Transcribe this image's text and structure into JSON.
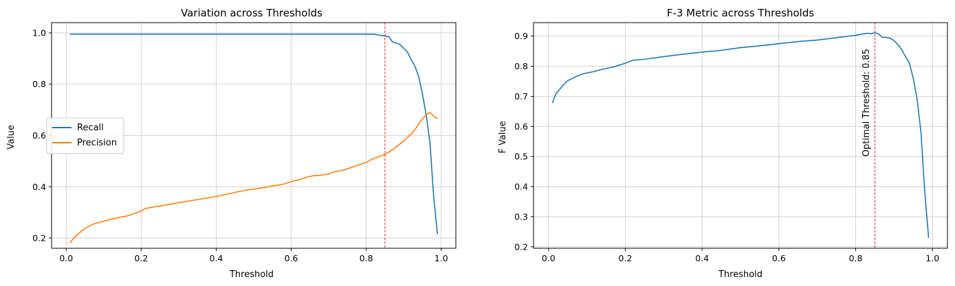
{
  "chart_data": [
    {
      "type": "line",
      "title": "Variation across Thresholds",
      "xlabel": "Threshold",
      "ylabel": "Value",
      "xlim": [
        -0.039,
        1.039
      ],
      "ylim": [
        0.16,
        1.04
      ],
      "xticks": [
        0.0,
        0.2,
        0.4,
        0.6,
        0.8,
        1.0
      ],
      "xtick_labels": [
        "0.0",
        "0.2",
        "0.4",
        "0.6",
        "0.8",
        "1.0"
      ],
      "yticks": [
        0.2,
        0.4,
        0.6,
        0.8,
        1.0
      ],
      "ytick_labels": [
        "0.2",
        "0.4",
        "0.6",
        "0.8",
        "1.0"
      ],
      "grid": true,
      "legend_position": "center-left",
      "vline": {
        "x": 0.85,
        "color": "#d62728",
        "style": "dashed"
      },
      "series": [
        {
          "name": "Recall",
          "color": "#1f77b4",
          "points": [
            [
              0.01,
              0.995
            ],
            [
              0.1,
              0.995
            ],
            [
              0.2,
              0.995
            ],
            [
              0.3,
              0.995
            ],
            [
              0.4,
              0.995
            ],
            [
              0.5,
              0.995
            ],
            [
              0.6,
              0.995
            ],
            [
              0.7,
              0.995
            ],
            [
              0.8,
              0.995
            ],
            [
              0.82,
              0.995
            ],
            [
              0.84,
              0.99
            ],
            [
              0.86,
              0.985
            ],
            [
              0.87,
              0.965
            ],
            [
              0.88,
              0.96
            ],
            [
              0.89,
              0.955
            ],
            [
              0.9,
              0.94
            ],
            [
              0.91,
              0.925
            ],
            [
              0.92,
              0.895
            ],
            [
              0.93,
              0.87
            ],
            [
              0.94,
              0.83
            ],
            [
              0.95,
              0.76
            ],
            [
              0.96,
              0.68
            ],
            [
              0.97,
              0.57
            ],
            [
              0.98,
              0.36
            ],
            [
              0.99,
              0.215
            ]
          ]
        },
        {
          "name": "Precision",
          "color": "#ff7f0e",
          "points": [
            [
              0.01,
              0.18
            ],
            [
              0.02,
              0.2
            ],
            [
              0.03,
              0.213
            ],
            [
              0.04,
              0.226
            ],
            [
              0.05,
              0.237
            ],
            [
              0.06,
              0.245
            ],
            [
              0.07,
              0.253
            ],
            [
              0.08,
              0.258
            ],
            [
              0.1,
              0.265
            ],
            [
              0.12,
              0.273
            ],
            [
              0.14,
              0.28
            ],
            [
              0.16,
              0.285
            ],
            [
              0.18,
              0.295
            ],
            [
              0.2,
              0.305
            ],
            [
              0.21,
              0.315
            ],
            [
              0.23,
              0.32
            ],
            [
              0.25,
              0.325
            ],
            [
              0.27,
              0.33
            ],
            [
              0.3,
              0.338
            ],
            [
              0.33,
              0.345
            ],
            [
              0.35,
              0.35
            ],
            [
              0.38,
              0.357
            ],
            [
              0.4,
              0.362
            ],
            [
              0.42,
              0.368
            ],
            [
              0.45,
              0.378
            ],
            [
              0.48,
              0.387
            ],
            [
              0.5,
              0.39
            ],
            [
              0.52,
              0.395
            ],
            [
              0.55,
              0.403
            ],
            [
              0.58,
              0.41
            ],
            [
              0.6,
              0.42
            ],
            [
              0.62,
              0.427
            ],
            [
              0.64,
              0.437
            ],
            [
              0.66,
              0.443
            ],
            [
              0.68,
              0.445
            ],
            [
              0.7,
              0.45
            ],
            [
              0.72,
              0.46
            ],
            [
              0.74,
              0.465
            ],
            [
              0.76,
              0.475
            ],
            [
              0.78,
              0.485
            ],
            [
              0.8,
              0.495
            ],
            [
              0.82,
              0.51
            ],
            [
              0.84,
              0.52
            ],
            [
              0.85,
              0.527
            ],
            [
              0.86,
              0.535
            ],
            [
              0.87,
              0.545
            ],
            [
              0.88,
              0.555
            ],
            [
              0.89,
              0.567
            ],
            [
              0.9,
              0.578
            ],
            [
              0.91,
              0.593
            ],
            [
              0.92,
              0.605
            ],
            [
              0.93,
              0.622
            ],
            [
              0.94,
              0.645
            ],
            [
              0.95,
              0.665
            ],
            [
              0.96,
              0.68
            ],
            [
              0.97,
              0.69
            ],
            [
              0.98,
              0.675
            ],
            [
              0.99,
              0.665
            ]
          ]
        }
      ]
    },
    {
      "type": "line",
      "title": "F-3 Metric across Thresholds",
      "xlabel": "Threshold",
      "ylabel": "F Value",
      "xlim": [
        -0.039,
        1.039
      ],
      "ylim": [
        0.195,
        0.945
      ],
      "xticks": [
        0.0,
        0.2,
        0.4,
        0.6,
        0.8,
        1.0
      ],
      "xtick_labels": [
        "0.0",
        "0.2",
        "0.4",
        "0.6",
        "0.8",
        "1.0"
      ],
      "yticks": [
        0.2,
        0.3,
        0.4,
        0.5,
        0.6,
        0.7,
        0.8,
        0.9
      ],
      "ytick_labels": [
        "0.2",
        "0.3",
        "0.4",
        "0.5",
        "0.6",
        "0.7",
        "0.8",
        "0.9"
      ],
      "grid": true,
      "vline": {
        "x": 0.85,
        "color": "#d62728",
        "style": "dashed"
      },
      "annotation": {
        "text": "Optimal Threshold: 0.85",
        "x": 0.835,
        "y": 0.5,
        "rotation": 90
      },
      "series": [
        {
          "name": "",
          "color": "#1f77b4",
          "points": [
            [
              0.01,
              0.678
            ],
            [
              0.02,
              0.71
            ],
            [
              0.03,
              0.725
            ],
            [
              0.04,
              0.74
            ],
            [
              0.05,
              0.752
            ],
            [
              0.07,
              0.765
            ],
            [
              0.09,
              0.775
            ],
            [
              0.12,
              0.783
            ],
            [
              0.14,
              0.79
            ],
            [
              0.17,
              0.798
            ],
            [
              0.2,
              0.81
            ],
            [
              0.22,
              0.82
            ],
            [
              0.25,
              0.823
            ],
            [
              0.3,
              0.832
            ],
            [
              0.35,
              0.84
            ],
            [
              0.4,
              0.847
            ],
            [
              0.45,
              0.853
            ],
            [
              0.5,
              0.862
            ],
            [
              0.55,
              0.868
            ],
            [
              0.6,
              0.875
            ],
            [
              0.65,
              0.882
            ],
            [
              0.7,
              0.887
            ],
            [
              0.75,
              0.895
            ],
            [
              0.8,
              0.903
            ],
            [
              0.83,
              0.91
            ],
            [
              0.84,
              0.908
            ],
            [
              0.85,
              0.912
            ],
            [
              0.86,
              0.907
            ],
            [
              0.87,
              0.896
            ],
            [
              0.88,
              0.896
            ],
            [
              0.89,
              0.893
            ],
            [
              0.9,
              0.885
            ],
            [
              0.91,
              0.872
            ],
            [
              0.92,
              0.855
            ],
            [
              0.93,
              0.832
            ],
            [
              0.94,
              0.81
            ],
            [
              0.95,
              0.76
            ],
            [
              0.96,
              0.69
            ],
            [
              0.97,
              0.58
            ],
            [
              0.98,
              0.38
            ],
            [
              0.99,
              0.23
            ]
          ]
        }
      ]
    }
  ]
}
